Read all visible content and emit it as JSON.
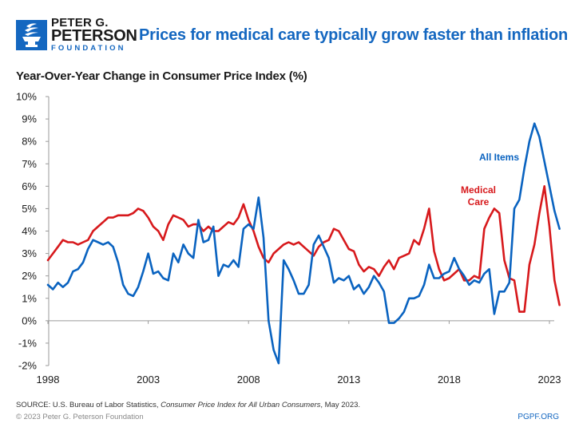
{
  "header": {
    "logo": {
      "icon": "torch-icon",
      "line1": "PETER G.",
      "line2": "PETERSON",
      "line3": "FOUNDATION"
    },
    "headline": "Prices for medical care typically grow faster than inflation"
  },
  "footer": {
    "source_prefix": "SOURCE: U.S. Bureau of Labor Statistics, ",
    "source_italic": "Consumer Price Index for All Urban Consumers",
    "source_suffix": ", May 2023.",
    "copyright": "© 2023 Peter G. Peterson Foundation",
    "site": "PGPF.ORG"
  },
  "colors": {
    "brand_blue": "#1467c0",
    "all_items": "#0a63c0",
    "medical_care": "#d7191c",
    "axis": "#9a9a9a"
  },
  "chart_data": {
    "type": "line",
    "title": "Prices for medical care typically grow faster than inflation",
    "subtitle": "Year-Over-Year Change in Consumer Price Index (%)",
    "xlabel": "",
    "ylabel": "Year-Over-Year Change in Consumer Price Index (%)",
    "xlim": [
      1998,
      2023.6
    ],
    "ylim": [
      -2,
      10
    ],
    "x_ticks": [
      1998,
      2003,
      2008,
      2013,
      2018,
      2023
    ],
    "x_tick_labels": [
      "1998",
      "2003",
      "2008",
      "2013",
      "2018",
      "2023"
    ],
    "y_ticks": [
      -2,
      -1,
      0,
      1,
      2,
      3,
      4,
      5,
      6,
      7,
      8,
      9,
      10
    ],
    "y_tick_labels": [
      "-2%",
      "-1%",
      "0%",
      "1%",
      "2%",
      "3%",
      "4%",
      "5%",
      "6%",
      "7%",
      "8%",
      "9%",
      "10%"
    ],
    "grid": false,
    "frequency": "quarterly (approximate read-off)",
    "x_start": 1998.0,
    "x_step": 0.25,
    "series": [
      {
        "name": "All Items",
        "label_lines": [
          "All Items"
        ],
        "color": "#0a63c0",
        "values": [
          1.6,
          1.4,
          1.7,
          1.5,
          1.7,
          2.2,
          2.3,
          2.6,
          3.2,
          3.6,
          3.5,
          3.4,
          3.5,
          3.3,
          2.6,
          1.6,
          1.2,
          1.1,
          1.5,
          2.2,
          3.0,
          2.1,
          2.2,
          1.9,
          1.8,
          3.0,
          2.6,
          3.4,
          3.0,
          2.8,
          4.5,
          3.5,
          3.6,
          4.2,
          2.0,
          2.5,
          2.4,
          2.7,
          2.4,
          4.1,
          4.3,
          4.1,
          5.5,
          3.7,
          0.0,
          -1.3,
          -1.9,
          2.7,
          2.3,
          1.8,
          1.2,
          1.2,
          1.6,
          3.4,
          3.8,
          3.3,
          2.8,
          1.7,
          1.9,
          1.8,
          2.0,
          1.4,
          1.6,
          1.2,
          1.5,
          2.0,
          1.7,
          1.3,
          -0.1,
          -0.1,
          0.1,
          0.4,
          1.0,
          1.0,
          1.1,
          1.6,
          2.5,
          1.9,
          1.9,
          2.1,
          2.2,
          2.8,
          2.3,
          2.0,
          1.6,
          1.8,
          1.7,
          2.1,
          2.3,
          0.3,
          1.3,
          1.3,
          1.7,
          5.0,
          5.4,
          6.8,
          8.0,
          8.8,
          8.2,
          7.1,
          6.0,
          4.9,
          4.1
        ]
      },
      {
        "name": "Medical Care",
        "label_lines": [
          "Medical",
          "Care"
        ],
        "color": "#d7191c",
        "values": [
          2.7,
          3.0,
          3.3,
          3.6,
          3.5,
          3.5,
          3.4,
          3.5,
          3.6,
          4.0,
          4.2,
          4.4,
          4.6,
          4.6,
          4.7,
          4.7,
          4.7,
          4.8,
          5.0,
          4.9,
          4.6,
          4.2,
          4.0,
          3.6,
          4.3,
          4.7,
          4.6,
          4.5,
          4.2,
          4.3,
          4.3,
          4.0,
          4.2,
          4.0,
          4.0,
          4.2,
          4.4,
          4.3,
          4.6,
          5.2,
          4.5,
          4.0,
          3.3,
          2.8,
          2.6,
          3.0,
          3.2,
          3.4,
          3.5,
          3.4,
          3.5,
          3.3,
          3.1,
          2.9,
          3.3,
          3.5,
          3.6,
          4.1,
          4.0,
          3.6,
          3.2,
          3.1,
          2.5,
          2.2,
          2.4,
          2.3,
          2.0,
          2.4,
          2.7,
          2.3,
          2.8,
          2.9,
          3.0,
          3.6,
          3.4,
          4.1,
          5.0,
          3.1,
          2.3,
          1.8,
          1.9,
          2.1,
          2.3,
          1.8,
          1.8,
          2.0,
          1.9,
          4.1,
          4.6,
          5.0,
          4.8,
          2.7,
          1.9,
          1.8,
          0.4,
          0.4,
          2.5,
          3.4,
          4.8,
          6.0,
          4.2,
          1.8,
          0.7
        ]
      }
    ],
    "legend": "inline labels near series end (top-right)"
  }
}
